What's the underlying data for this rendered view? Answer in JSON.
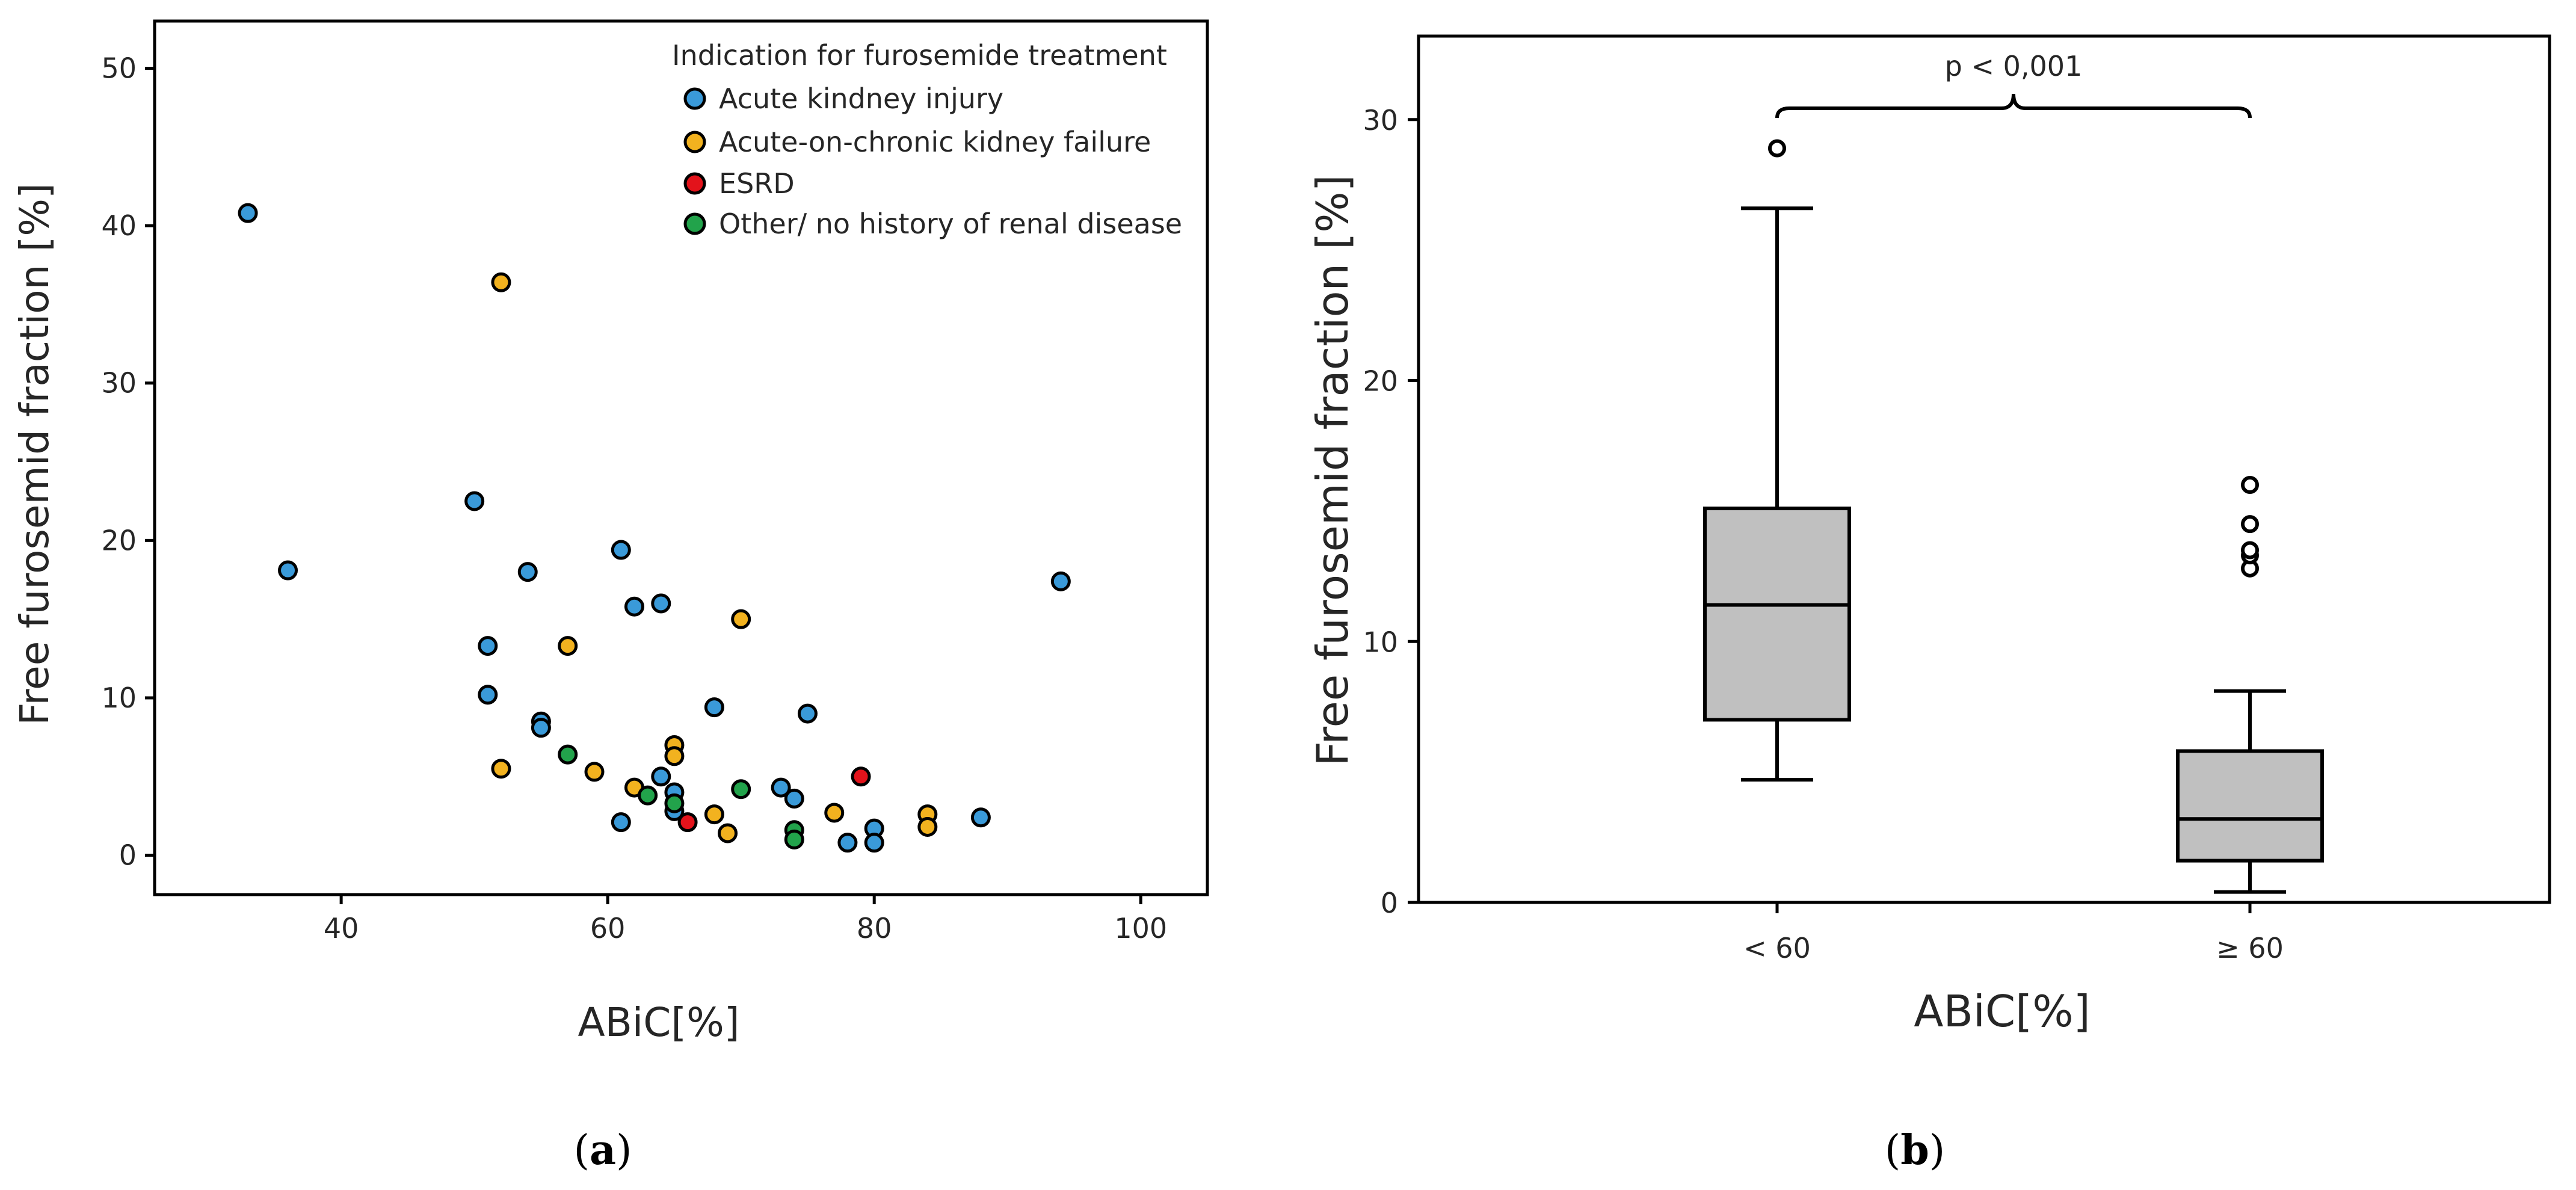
{
  "colors": {
    "aki": "#3a9ad9",
    "acute_on_chronic": "#f2b21f",
    "esrd": "#e3131b",
    "other": "#22a34b",
    "box_fill": "#c0c0c0",
    "stroke": "#000000"
  },
  "chart_data": [
    {
      "type": "scatter",
      "panel": "a",
      "caption": "a",
      "xlabel": "ABiC[%]",
      "ylabel": "Free furosemid fraction [%]",
      "xlim": [
        26,
        105
      ],
      "ylim": [
        -2.5,
        53
      ],
      "xticks": [
        40,
        60,
        80,
        100
      ],
      "yticks": [
        0,
        10,
        20,
        30,
        40,
        50
      ],
      "legend": {
        "title": "Indication for furosemide treatment",
        "placement": "top-right",
        "entries": [
          {
            "key": "aki",
            "label": "Acute kindney injury"
          },
          {
            "key": "acute_on_chronic",
            "label": "Acute-on-chronic kidney failure"
          },
          {
            "key": "esrd",
            "label": "ESRD"
          },
          {
            "key": "other",
            "label": "Other/ no history of renal disease"
          }
        ]
      },
      "series": [
        {
          "name": "Acute kindney injury",
          "key": "aki",
          "points": [
            {
              "x": 33,
              "y": 40.8
            },
            {
              "x": 36,
              "y": 18.1
            },
            {
              "x": 50,
              "y": 22.5
            },
            {
              "x": 51,
              "y": 13.3
            },
            {
              "x": 51,
              "y": 10.2
            },
            {
              "x": 54,
              "y": 18.0
            },
            {
              "x": 55,
              "y": 8.5
            },
            {
              "x": 55,
              "y": 8.1
            },
            {
              "x": 61,
              "y": 19.4
            },
            {
              "x": 62,
              "y": 15.8
            },
            {
              "x": 64,
              "y": 16.0
            },
            {
              "x": 64,
              "y": 5.0
            },
            {
              "x": 65,
              "y": 4.0
            },
            {
              "x": 65,
              "y": 2.8
            },
            {
              "x": 61,
              "y": 2.1
            },
            {
              "x": 68,
              "y": 9.4
            },
            {
              "x": 73,
              "y": 4.3
            },
            {
              "x": 74,
              "y": 3.6
            },
            {
              "x": 75,
              "y": 9.0
            },
            {
              "x": 78,
              "y": 0.8
            },
            {
              "x": 80,
              "y": 1.7
            },
            {
              "x": 80,
              "y": 0.8
            },
            {
              "x": 88,
              "y": 2.4
            },
            {
              "x": 94,
              "y": 17.4
            }
          ]
        },
        {
          "name": "Acute-on-chronic kidney failure",
          "key": "acute_on_chronic",
          "points": [
            {
              "x": 52,
              "y": 36.4
            },
            {
              "x": 52,
              "y": 5.5
            },
            {
              "x": 57,
              "y": 13.3
            },
            {
              "x": 59,
              "y": 5.3
            },
            {
              "x": 62,
              "y": 4.3
            },
            {
              "x": 65,
              "y": 7.0
            },
            {
              "x": 65,
              "y": 6.3
            },
            {
              "x": 68,
              "y": 2.6
            },
            {
              "x": 69,
              "y": 1.4
            },
            {
              "x": 70,
              "y": 15.0
            },
            {
              "x": 77,
              "y": 2.7
            },
            {
              "x": 84,
              "y": 2.6
            },
            {
              "x": 84,
              "y": 1.8
            }
          ]
        },
        {
          "name": "ESRD",
          "key": "esrd",
          "points": [
            {
              "x": 66,
              "y": 2.1
            },
            {
              "x": 79,
              "y": 5.0
            }
          ]
        },
        {
          "name": "Other/ no history of renal disease",
          "key": "other",
          "points": [
            {
              "x": 57,
              "y": 6.4
            },
            {
              "x": 63,
              "y": 3.8
            },
            {
              "x": 65,
              "y": 3.3
            },
            {
              "x": 70,
              "y": 4.2
            },
            {
              "x": 74,
              "y": 1.6
            },
            {
              "x": 74,
              "y": 1.0
            }
          ]
        }
      ]
    },
    {
      "type": "box",
      "panel": "b",
      "caption": "b",
      "xlabel": "ABiC[%]",
      "ylabel": "Free furosemid fraction [%]",
      "ylim": [
        0,
        33.2
      ],
      "yticks": [
        0,
        10,
        20,
        30
      ],
      "categories": [
        "< 60",
        "≥ 60"
      ],
      "boxes": [
        {
          "category": "< 60",
          "whisker_low": 4.7,
          "q1": 7.0,
          "median": 11.4,
          "q3": 15.1,
          "whisker_high": 26.6,
          "outliers": [
            28.9
          ]
        },
        {
          "category": "≥ 60",
          "whisker_low": 0.4,
          "q1": 1.6,
          "median": 3.2,
          "q3": 5.8,
          "whisker_high": 8.1,
          "outliers": [
            12.8,
            13.3,
            13.5,
            14.5,
            16.0
          ]
        }
      ],
      "annotation": {
        "text": "p < 0,001",
        "between": [
          "< 60",
          "≥ 60"
        ]
      }
    }
  ]
}
